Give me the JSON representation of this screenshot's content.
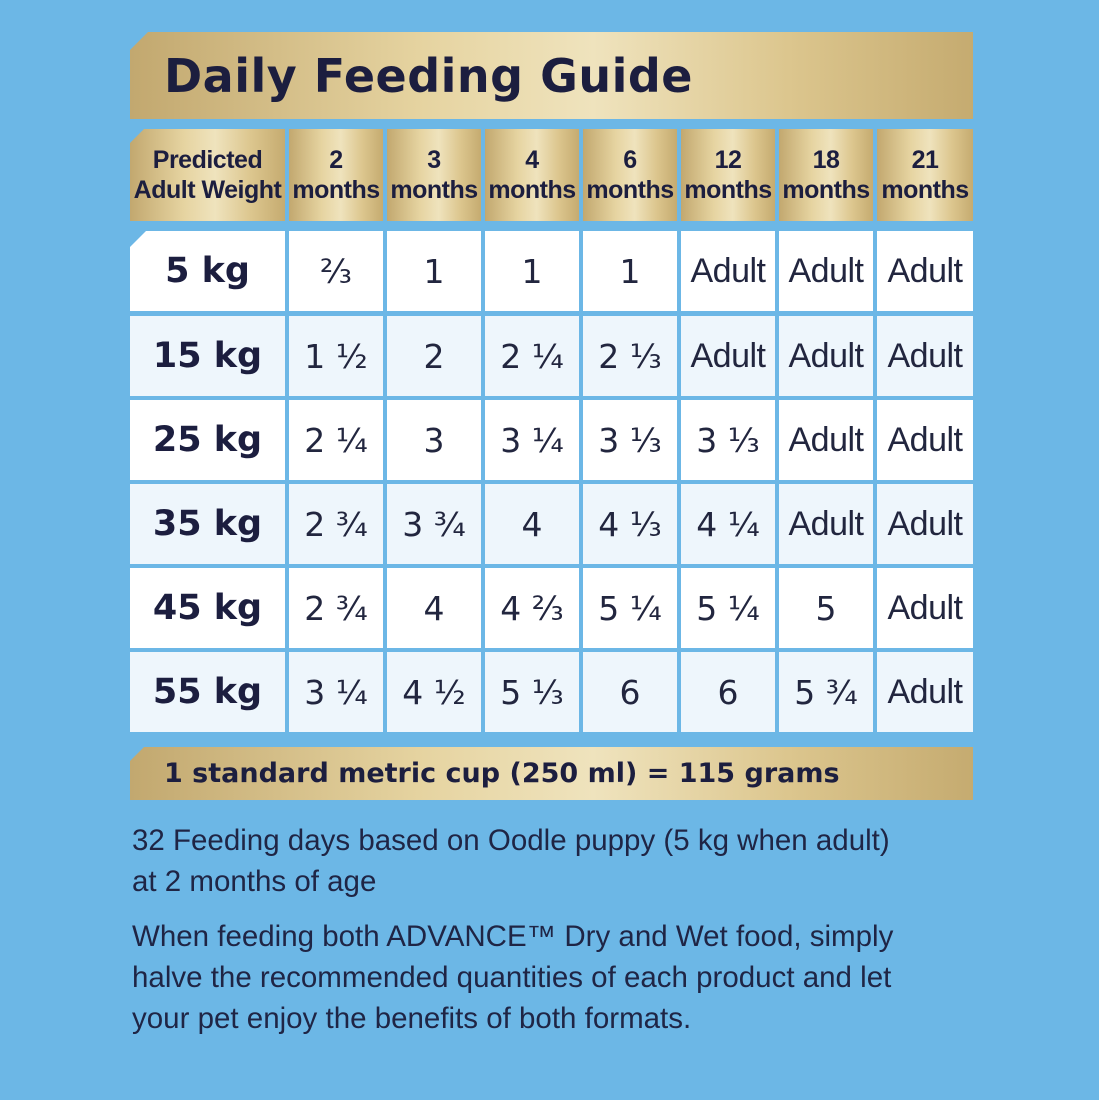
{
  "title": "Daily Feeding Guide",
  "header": {
    "weight_line1": "Predicted",
    "weight_line2": "Adult Weight",
    "columns": [
      {
        "num": "2",
        "unit": "months"
      },
      {
        "num": "3",
        "unit": "months"
      },
      {
        "num": "4",
        "unit": "months"
      },
      {
        "num": "6",
        "unit": "months"
      },
      {
        "num": "12",
        "unit": "months"
      },
      {
        "num": "18",
        "unit": "months"
      },
      {
        "num": "21",
        "unit": "months"
      }
    ]
  },
  "rows": [
    {
      "weight": "5 kg",
      "values": [
        "⅔",
        "1",
        "1",
        "1",
        "Adult",
        "Adult",
        "Adult"
      ]
    },
    {
      "weight": "15 kg",
      "values": [
        "1 ½",
        "2",
        "2 ¼",
        "2 ⅓",
        "Adult",
        "Adult",
        "Adult"
      ]
    },
    {
      "weight": "25 kg",
      "values": [
        "2 ¼",
        "3",
        "3 ¼",
        "3 ⅓",
        "3 ⅓",
        "Adult",
        "Adult"
      ]
    },
    {
      "weight": "35 kg",
      "values": [
        "2 ¾",
        "3 ¾",
        "4",
        "4 ⅓",
        "4 ¼",
        "Adult",
        "Adult"
      ]
    },
    {
      "weight": "45 kg",
      "values": [
        "2 ¾",
        "4",
        "4 ⅔",
        "5 ¼",
        "5 ¼",
        "5",
        "Adult"
      ]
    },
    {
      "weight": "55 kg",
      "values": [
        "3 ¼",
        "4 ½",
        "5 ⅓",
        "6",
        "6",
        "5 ¾",
        "Adult"
      ]
    }
  ],
  "cup_note": "1 standard metric cup (250 ml) = 115 grams",
  "note1": "32 Feeding days based on Oodle puppy (5 kg when adult) at 2 months of age",
  "note2": "When feeding both ADVANCE™ Dry and Wet food, simply halve the recommended quantities of each product and let your pet enjoy the benefits of both formats.",
  "colors": {
    "background": "#6cb7e6",
    "gold": "#e6d4a1",
    "navy_text": "#1c1e3f",
    "row_white": "#ffffff",
    "row_tint": "#eef6fc"
  }
}
